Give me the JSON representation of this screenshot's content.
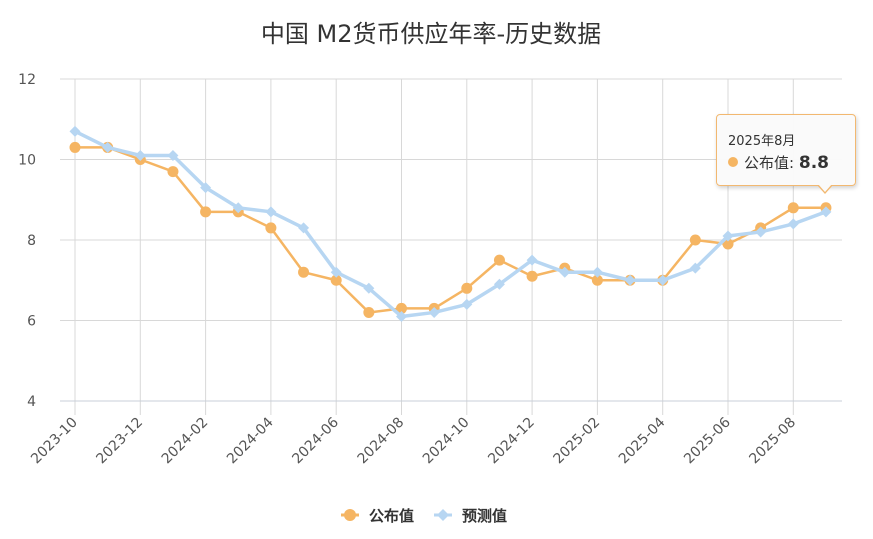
{
  "chart_data": {
    "type": "line",
    "title": "中国 M2货币供应年率-历史数据",
    "x": [
      "2023-10",
      "2023-11",
      "2023-12",
      "2024-01",
      "2024-02",
      "2024-03",
      "2024-04",
      "2024-05",
      "2024-06",
      "2024-07",
      "2024-08",
      "2024-09",
      "2024-10",
      "2024-11",
      "2024-12",
      "2025-01",
      "2025-02",
      "2025-03",
      "2025-04",
      "2025-05",
      "2025-06",
      "2025-07",
      "2025-08",
      "2025-09"
    ],
    "x_tick_labels": [
      "2023-10",
      "2023-12",
      "2024-02",
      "2024-04",
      "2024-06",
      "2024-08",
      "2024-10",
      "2024-12",
      "2025-02",
      "2025-04",
      "2025-06",
      "2025-08"
    ],
    "ylim": [
      4,
      12
    ],
    "y_ticks": [
      4,
      6,
      8,
      10,
      12
    ],
    "grid": true,
    "legend_position": "bottom",
    "series": [
      {
        "name": "公布值",
        "color": "#f5b563",
        "marker": "circle",
        "values": [
          10.3,
          10.3,
          10.0,
          9.7,
          8.7,
          8.7,
          8.3,
          7.2,
          7.0,
          6.2,
          6.3,
          6.3,
          6.8,
          7.5,
          7.1,
          7.3,
          7.0,
          7.0,
          7.0,
          8.0,
          7.9,
          8.3,
          8.8,
          8.8
        ]
      },
      {
        "name": "预测值",
        "color": "#b7d6f2",
        "marker": "diamond",
        "values": [
          10.7,
          10.3,
          10.1,
          10.1,
          9.3,
          8.8,
          8.7,
          8.3,
          7.2,
          6.8,
          6.1,
          6.2,
          6.4,
          6.9,
          7.5,
          7.2,
          7.2,
          7.0,
          7.0,
          7.3,
          8.1,
          8.2,
          8.4,
          8.7
        ]
      }
    ]
  },
  "tooltip": {
    "date": "2025年8月",
    "series_name": "公布值",
    "separator": ":",
    "value": "8.8"
  }
}
